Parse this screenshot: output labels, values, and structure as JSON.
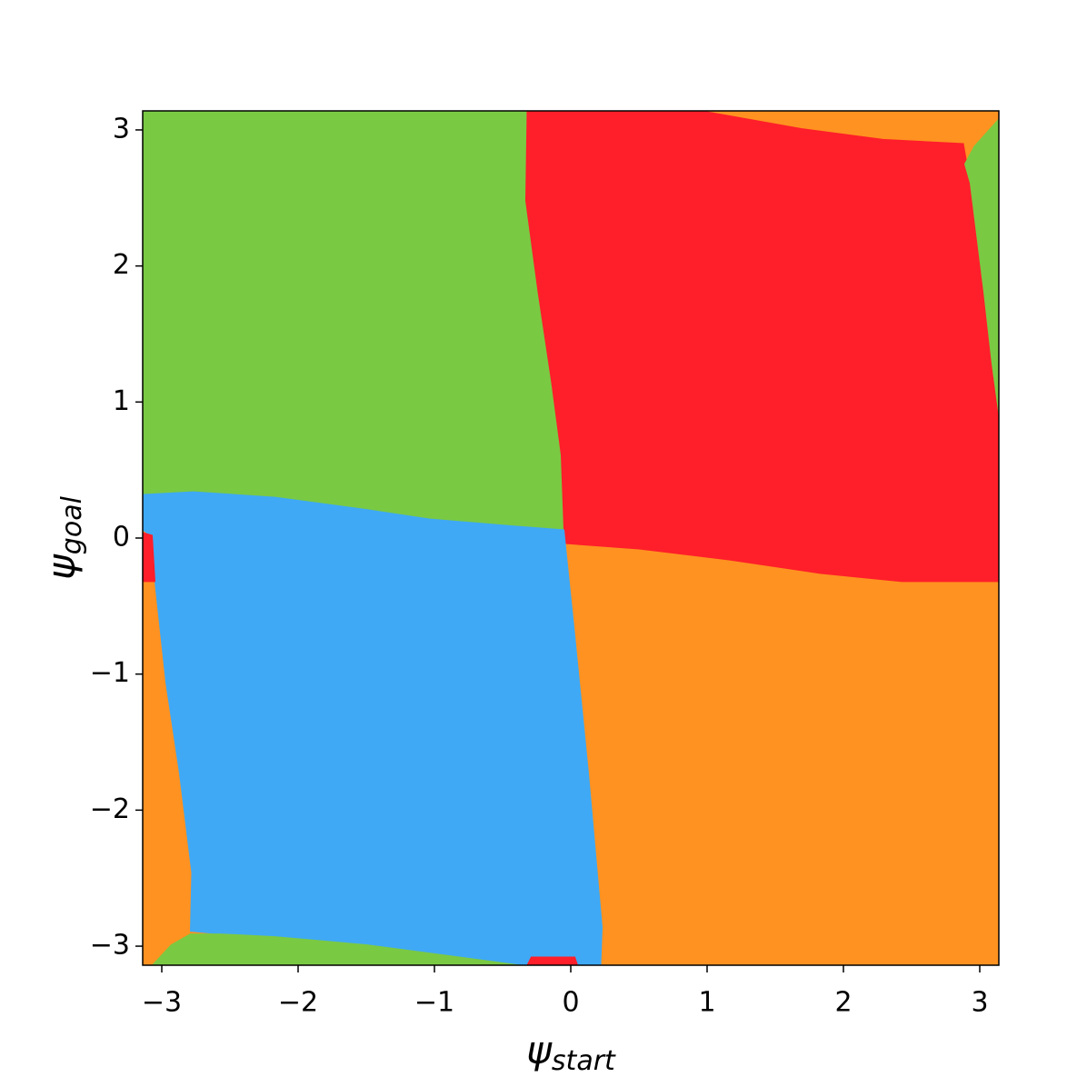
{
  "chart_data": {
    "type": "region",
    "xlabel": {
      "symbol": "ψ",
      "subscript": "start"
    },
    "ylabel": {
      "symbol": "ψ",
      "subscript": "goal"
    },
    "xlim": [
      -3.14,
      3.14
    ],
    "ylim": [
      -3.14,
      3.14
    ],
    "xticks": [
      {
        "value": -3,
        "label": "−3"
      },
      {
        "value": -2,
        "label": "−2"
      },
      {
        "value": -1,
        "label": "−1"
      },
      0,
      1,
      2,
      3
    ],
    "yticks": [
      {
        "value": -3,
        "label": "−3"
      },
      {
        "value": -2,
        "label": "−2"
      },
      {
        "value": -1,
        "label": "−1"
      },
      0,
      1,
      2,
      3
    ],
    "regions": [
      {
        "color": "#ff9220",
        "x": [
          -3.14,
          3.14,
          3.14,
          -3.14
        ],
        "y": [
          3.14,
          3.14,
          -3.14,
          -3.14
        ]
      },
      {
        "color": "#7ac943",
        "x": [
          -3.14,
          -0.32,
          -0.33,
          -0.24,
          -0.14,
          -0.07,
          -0.05,
          -0.44,
          -1.04,
          -1.5,
          -2.17,
          -2.77,
          -3.14
        ],
        "y": [
          3.14,
          3.14,
          2.48,
          1.81,
          1.14,
          0.61,
          0.06,
          0.09,
          0.14,
          0.21,
          0.3,
          0.34,
          0.32
        ]
      },
      {
        "color": "#ff1f2a",
        "x": [
          -0.32,
          0.96,
          1.69,
          2.29,
          2.88,
          2.93,
          3.03,
          3.09,
          3.14,
          3.14,
          2.43,
          1.83,
          1.16,
          0.5,
          -0.04,
          -0.05,
          -0.07,
          -0.14,
          -0.24,
          -0.33
        ],
        "y": [
          3.14,
          3.14,
          3.01,
          2.93,
          2.9,
          2.61,
          1.81,
          1.28,
          0.91,
          -0.32,
          -0.32,
          -0.26,
          -0.16,
          -0.08,
          -0.04,
          0.06,
          0.61,
          1.14,
          1.81,
          2.48
        ]
      },
      {
        "color": "#7ac943",
        "x": [
          3.14,
          2.96,
          2.89,
          2.93,
          3.03,
          3.09,
          3.14
        ],
        "y": [
          3.08,
          2.88,
          2.75,
          2.61,
          1.81,
          1.28,
          0.91
        ]
      },
      {
        "color": "#3fa9f5",
        "x": [
          -3.14,
          -2.77,
          -2.17,
          -1.5,
          -1.04,
          -0.44,
          -0.05,
          -0.04,
          0.03,
          0.13,
          0.23,
          0.22,
          -0.37,
          -0.97,
          -1.5,
          -2.17,
          -2.57,
          -2.79,
          -2.78,
          -2.87,
          -2.97,
          -3.05,
          -3.07,
          -3.14
        ],
        "y": [
          0.32,
          0.34,
          0.3,
          0.21,
          0.14,
          0.09,
          0.06,
          -0.04,
          -0.72,
          -1.73,
          -2.86,
          -3.14,
          -3.14,
          -3.06,
          -2.99,
          -2.93,
          -2.91,
          -2.89,
          -2.46,
          -1.73,
          -1.06,
          -0.32,
          0.01,
          0.06
        ]
      },
      {
        "color": "#ff1f2a",
        "x": [
          -3.14,
          -3.07,
          -3.05,
          -3.14
        ],
        "y": [
          0.04,
          0.02,
          -0.32,
          -0.32
        ]
      },
      {
        "color": "#ff1f2a",
        "x": [
          -0.32,
          -0.29,
          0.03,
          0.05
        ],
        "y": [
          -3.14,
          -3.08,
          -3.08,
          -3.14
        ]
      },
      {
        "color": "#7ac943",
        "x": [
          -3.07,
          -2.93,
          -2.79,
          -2.57,
          -2.17,
          -1.5,
          -0.97,
          -0.37
        ],
        "y": [
          -3.14,
          -2.99,
          -2.91,
          -2.91,
          -2.93,
          -2.99,
          -3.06,
          -3.14
        ]
      }
    ]
  }
}
